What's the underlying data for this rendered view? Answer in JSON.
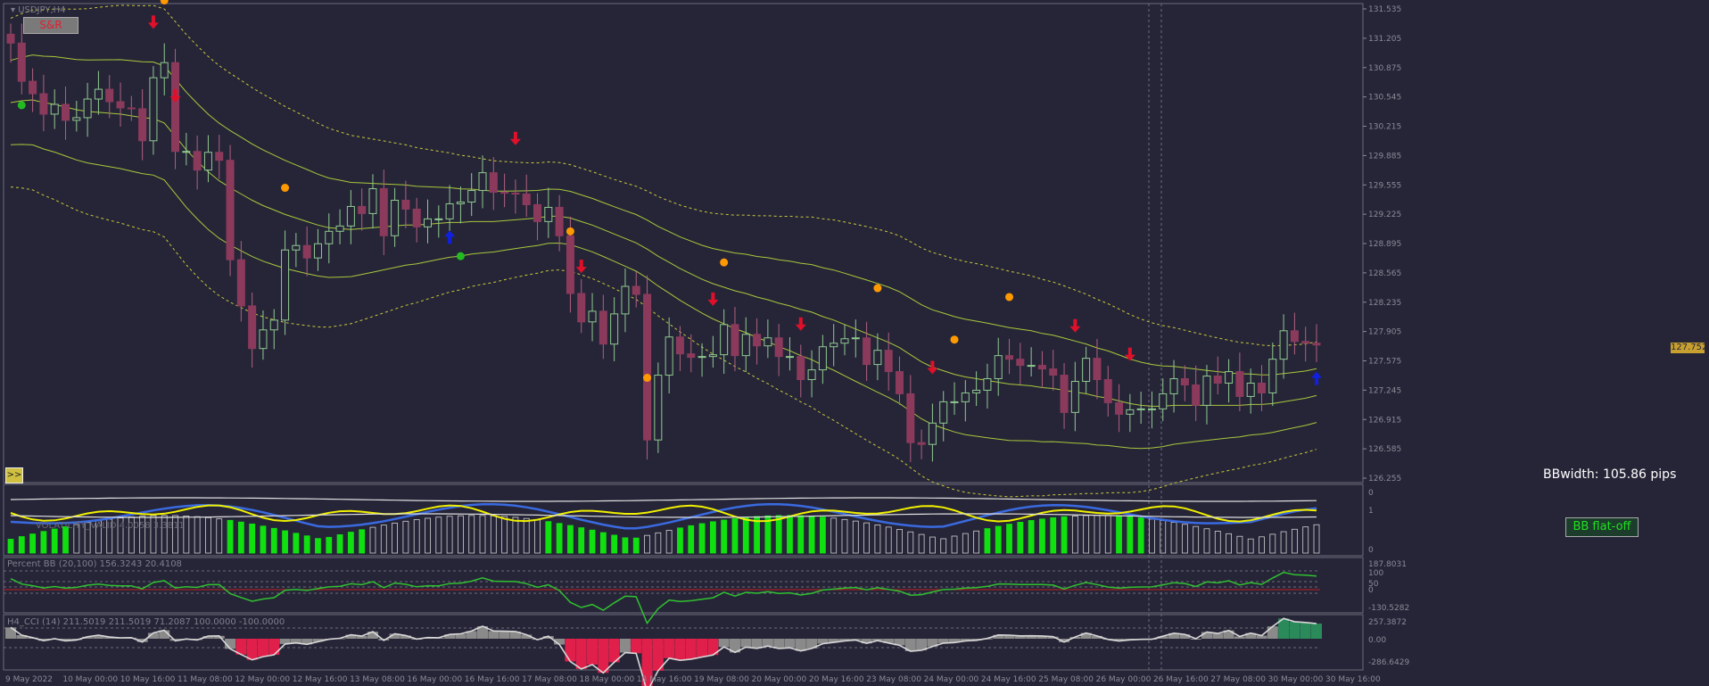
{
  "window": {
    "symbol_title": "USDJPY,H4",
    "sr_button": "S&R",
    "expand_button": ">>"
  },
  "colors": {
    "background": "#262538",
    "grid": "#5a5a6a",
    "bull_candle": "#8fc98f",
    "bear_candle": "#8c3a5c",
    "bb_line": "#a8c83a",
    "bb_dotted": "#c8c83a",
    "down_arrow": "#e0102a",
    "up_arrow": "#1020e0",
    "dot_orange": "#ff9900",
    "dot_green": "#22bb22",
    "hist_green": "#10e010",
    "blue_line": "#3a6ae0",
    "yellow_line": "#f0f000",
    "cci_red": "#e0204a",
    "cci_teal": "#2a8a5a"
  },
  "main_price": {
    "current_price": "127.752",
    "bbwidth_label": "BBwidth: 105.86 pips"
  },
  "panels": {
    "volatility": {
      "title": "VOLATILITY_VALID 4.0058 3.3811",
      "button": "BB flat-off"
    },
    "percent_bb": {
      "title": "Percent BB (20,100) 156.3243 20.4108"
    },
    "cci": {
      "title": "H4_CCI (14) 211.5019 211.5019 71.2087 100.0000 -100.0000"
    }
  },
  "chart_data": [
    {
      "type": "candlestick",
      "title": "USDJPY,H4",
      "ylim": [
        126.25,
        131.535
      ],
      "y_ticks": [
        "131.535",
        "131.205",
        "130.875",
        "130.545",
        "130.215",
        "129.885",
        "129.555",
        "129.225",
        "128.895",
        "128.565",
        "128.235",
        "127.905",
        "127.575",
        "127.245",
        "126.915",
        "126.585",
        "126.255"
      ],
      "x_ticks": [
        "9 May 2022",
        "10 May 00:00",
        "10 May 16:00",
        "11 May 08:00",
        "12 May 00:00",
        "12 May 16:00",
        "13 May 08:00",
        "16 May 00:00",
        "16 May 16:00",
        "17 May 08:00",
        "18 May 00:00",
        "18 May 16:00",
        "19 May 08:00",
        "20 May 00:00",
        "20 May 16:00",
        "23 May 08:00",
        "24 May 00:00",
        "24 May 16:00",
        "25 May 08:00",
        "26 May 00:00",
        "26 May 16:00",
        "27 May 08:00",
        "30 May 00:00",
        "30 May 16:00"
      ],
      "close_series": [
        131.15,
        130.72,
        130.58,
        130.35,
        130.46,
        130.28,
        130.31,
        130.52,
        130.63,
        130.49,
        130.42,
        130.41,
        130.05,
        130.76,
        130.93,
        129.93,
        129.93,
        129.72,
        129.92,
        129.83,
        128.71,
        128.19,
        127.71,
        127.92,
        128.03,
        128.82,
        128.87,
        128.73,
        128.89,
        129.03,
        129.09,
        129.31,
        129.23,
        129.51,
        128.98,
        129.38,
        129.28,
        129.08,
        129.17,
        129.17,
        129.34,
        129.36,
        129.49,
        129.69,
        129.47,
        129.46,
        129.45,
        129.33,
        129.14,
        129.3,
        128.98,
        128.33,
        128.01,
        128.13,
        127.76,
        128.1,
        128.41,
        128.32,
        126.68,
        127.41,
        127.84,
        127.65,
        127.61,
        127.62,
        127.64,
        127.98,
        127.63,
        127.87,
        127.74,
        127.83,
        127.62,
        127.62,
        127.36,
        127.47,
        127.73,
        127.77,
        127.82,
        127.83,
        127.53,
        127.69,
        127.45,
        127.2,
        126.65,
        126.63,
        126.87,
        127.11,
        127.11,
        127.21,
        127.24,
        127.37,
        127.63,
        127.59,
        127.52,
        127.52,
        127.48,
        127.41,
        126.99,
        127.34,
        127.6,
        127.36,
        127.1,
        126.97,
        127.02,
        127.03,
        127.03,
        127.2,
        127.37,
        127.3,
        127.07,
        127.4,
        127.32,
        127.45,
        127.17,
        127.32,
        127.21,
        127.59,
        127.91,
        127.79,
        127.77,
        127.75
      ],
      "bb_middle": [
        130.48,
        130.5,
        130.51,
        130.48,
        130.46,
        130.43,
        130.4,
        130.38,
        130.37,
        130.36,
        130.35,
        130.33,
        130.31,
        130.3,
        130.25,
        130.1,
        129.95,
        129.82,
        129.7,
        129.6,
        129.52,
        129.45,
        129.38,
        129.32,
        129.27,
        129.22,
        129.18,
        129.14,
        129.1,
        129.07,
        129.06,
        129.05,
        129.06,
        129.07,
        129.08,
        129.09,
        129.1,
        129.1,
        129.11,
        129.12,
        129.13,
        129.13,
        129.14,
        129.14,
        129.14,
        129.15,
        129.16,
        129.17,
        129.18,
        129.2,
        129.2,
        129.18,
        129.14,
        129.1,
        129.05,
        129.0,
        128.95,
        128.9,
        128.83,
        128.75,
        128.68,
        128.61,
        128.55,
        128.49,
        128.44,
        128.4,
        128.36,
        128.33,
        128.29,
        128.26,
        128.22,
        128.19,
        128.15,
        128.12,
        128.07,
        128.03,
        127.98,
        127.93,
        127.88,
        127.83,
        127.78,
        127.72,
        127.64,
        127.56,
        127.5,
        127.46,
        127.42,
        127.39,
        127.37,
        127.35,
        127.33,
        127.31,
        127.3,
        127.29,
        127.27,
        127.26,
        127.24,
        127.22,
        127.2,
        127.17,
        127.15,
        127.12,
        127.09,
        127.07,
        127.06,
        127.06,
        127.07,
        127.07,
        127.07,
        127.07,
        127.07,
        127.07,
        127.07,
        127.08,
        127.08,
        127.09,
        127.11,
        127.13,
        127.15,
        127.18
      ]
    },
    {
      "type": "bar",
      "title": "VOLATILITY_VALID 4.0058 3.3811",
      "ylim": [
        0,
        3
      ],
      "y_ticks": [
        "0",
        "1",
        "0"
      ]
    },
    {
      "type": "line",
      "title": "Percent BB (20,100) 156.3243 20.4108",
      "ylim": [
        -130.5282,
        187.8031
      ],
      "y_ticks": [
        "187.8031",
        "100",
        "50",
        "0",
        "-130.5282"
      ]
    },
    {
      "type": "bar",
      "title": "H4_CCI (14) 211.5019 211.5019 71.2087 100.0000 -100.0000",
      "ylim": [
        -286.6429,
        257.3872
      ],
      "y_ticks": [
        "257.3872",
        "0.00",
        "-286.6429"
      ]
    }
  ]
}
